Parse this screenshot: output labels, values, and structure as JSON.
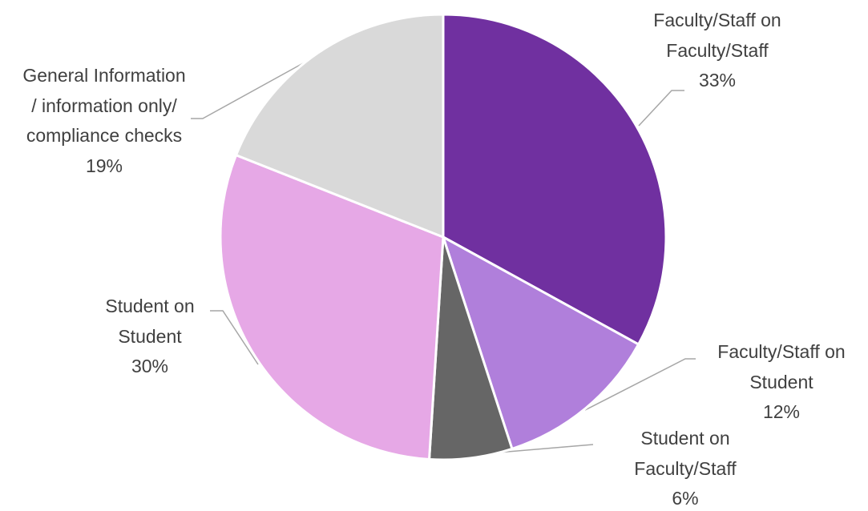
{
  "chart_data": {
    "type": "pie",
    "categories": [
      "Faculty/Staff on Faculty/Staff",
      "Faculty/Staff on Student",
      "Student on Faculty/Staff",
      "Student on Student",
      "General Information / information only/ compliance checks"
    ],
    "values": [
      33,
      12,
      6,
      30,
      19
    ],
    "value_labels": [
      "33%",
      "12%",
      "6%",
      "30%",
      "19%"
    ],
    "colors": [
      "#7030a0",
      "#b07fdb",
      "#666666",
      "#e6a8e6",
      "#d9d9d9"
    ]
  }
}
